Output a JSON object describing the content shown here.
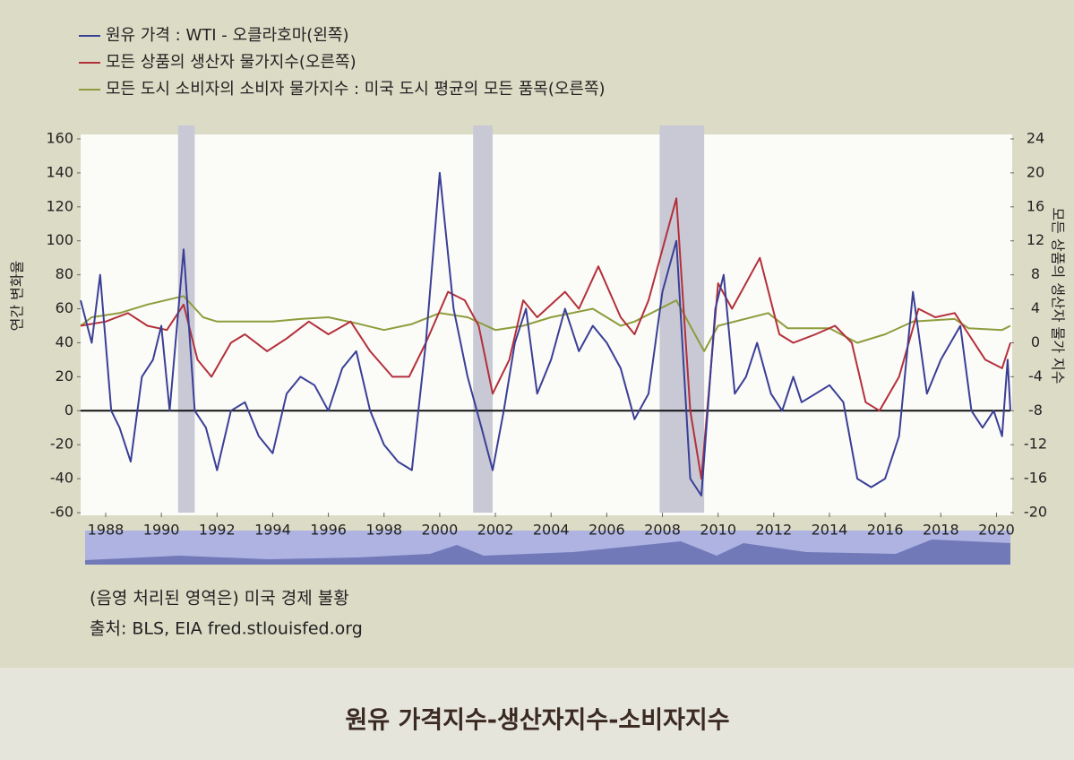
{
  "chart_data": {
    "type": "line",
    "title": "원유 가격지수-생산자지수-소비자지수",
    "ylabel": "연간 변화율",
    "y2label": "모든 상품의 생산자 물가 지수",
    "note": "(음영 처리된 영역은) 미국 경제 불황",
    "source": "출처: BLS, EIA fred.stlouisfed.org",
    "xlim": [
      1987.1,
      2020.5
    ],
    "xticks": [
      1988,
      1990,
      1992,
      1994,
      1996,
      1998,
      2000,
      2002,
      2004,
      2006,
      2008,
      2010,
      2012,
      2014,
      2016,
      2018,
      2020
    ],
    "ylim": [
      -60,
      160
    ],
    "yticks": [
      -60,
      -40,
      -20,
      0,
      20,
      40,
      60,
      80,
      100,
      120,
      140,
      160
    ],
    "y2lim": [
      -20,
      24
    ],
    "y2ticks": [
      -20,
      -16,
      -12,
      -8,
      -4,
      0,
      4,
      8,
      12,
      16,
      20,
      24
    ],
    "grid": false,
    "legend": "top-left",
    "recession_color": "#c9c9d6",
    "recessions": [
      [
        1990.6,
        1991.2
      ],
      [
        2001.2,
        2001.9
      ],
      [
        2007.9,
        2009.5
      ]
    ],
    "series": [
      {
        "name": "원유 가격 : WTI - 오클라호마(왼쪽)",
        "color": "#3a3f96",
        "axis": "y",
        "x": [
          1987.1,
          1987.5,
          1987.8,
          1988.2,
          1988.5,
          1988.9,
          1989.3,
          1989.7,
          1990.0,
          1990.3,
          1990.8,
          1991.2,
          1991.6,
          1992.0,
          1992.5,
          1993.0,
          1993.5,
          1994.0,
          1994.5,
          1995.0,
          1995.5,
          1996.0,
          1996.5,
          1997.0,
          1997.5,
          1998.0,
          1998.5,
          1999.0,
          1999.5,
          2000.0,
          2000.5,
          2001.0,
          2001.5,
          2001.9,
          2002.3,
          2002.7,
          2003.1,
          2003.5,
          2004.0,
          2004.5,
          2005.0,
          2005.5,
          2006.0,
          2006.5,
          2007.0,
          2007.5,
          2008.0,
          2008.5,
          2009.0,
          2009.4,
          2009.9,
          2010.2,
          2010.6,
          2011.0,
          2011.4,
          2011.9,
          2012.3,
          2012.7,
          2013.0,
          2013.5,
          2014.0,
          2014.5,
          2015.0,
          2015.5,
          2016.0,
          2016.5,
          2017.0,
          2017.5,
          2018.0,
          2018.7,
          2019.1,
          2019.5,
          2019.9,
          2020.2,
          2020.4,
          2020.5
        ],
        "values": [
          65,
          40,
          80,
          0,
          -10,
          -30,
          20,
          30,
          50,
          0,
          95,
          0,
          -10,
          -35,
          0,
          5,
          -15,
          -25,
          10,
          20,
          15,
          0,
          25,
          35,
          0,
          -20,
          -30,
          -35,
          40,
          140,
          60,
          20,
          -10,
          -35,
          0,
          40,
          60,
          10,
          30,
          60,
          35,
          50,
          40,
          25,
          -5,
          10,
          70,
          100,
          -40,
          -50,
          60,
          80,
          10,
          20,
          40,
          10,
          0,
          20,
          5,
          10,
          15,
          5,
          -40,
          -45,
          -40,
          -15,
          70,
          10,
          30,
          50,
          0,
          -10,
          0,
          -15,
          30,
          0
        ]
      },
      {
        "name": "모든 상품의 생산자 물가지수(오른쪽)",
        "color": "#b3303a",
        "axis": "y2",
        "x": [
          1987.1,
          1988.0,
          1988.8,
          1989.5,
          1990.2,
          1990.8,
          1991.3,
          1991.8,
          1992.5,
          1993.0,
          1993.8,
          1994.5,
          1995.3,
          1996.0,
          1996.8,
          1997.5,
          1998.3,
          1998.9,
          1999.5,
          2000.3,
          2000.9,
          2001.4,
          2001.9,
          2002.5,
          2003.0,
          2003.5,
          2004.5,
          2005.0,
          2005.7,
          2006.5,
          2007.0,
          2007.5,
          2008.5,
          2009.0,
          2009.4,
          2010.0,
          2010.5,
          2011.5,
          2012.2,
          2012.7,
          2013.5,
          2014.2,
          2014.8,
          2015.3,
          2015.8,
          2016.5,
          2017.2,
          2017.8,
          2018.5,
          2019.0,
          2019.6,
          2020.2,
          2020.5
        ],
        "values": [
          2,
          2.5,
          3.5,
          2,
          1.5,
          4.5,
          -2,
          -4,
          0,
          1,
          -1,
          0.5,
          2.5,
          1,
          2.5,
          -1,
          -4,
          -4,
          0,
          6,
          5,
          2,
          -6,
          -2,
          5,
          3,
          6,
          4,
          9,
          3,
          1,
          5,
          17,
          -8,
          -16,
          7,
          4,
          10,
          1,
          0,
          1,
          2,
          0,
          -7,
          -8,
          -4,
          4,
          3,
          3.5,
          1,
          -2,
          -3,
          0
        ]
      },
      {
        "name": "모든 도시 소비자의 소비자 물가지수 : 미국 도시 평균의 모든 품목(오른쪽)",
        "color": "#8f9c3c",
        "axis": "y2",
        "x": [
          1987.1,
          1987.5,
          1988.5,
          1989.5,
          1990.8,
          1991.5,
          1992.0,
          1993.0,
          1994.0,
          1995.0,
          1996.0,
          1997.0,
          1998.0,
          1999.0,
          2000.0,
          2001.0,
          2002.0,
          2003.0,
          2004.0,
          2005.5,
          2006.5,
          2007.0,
          2008.5,
          2009.5,
          2010.0,
          2011.8,
          2012.5,
          2014.0,
          2015.0,
          2016.0,
          2017.0,
          2018.5,
          2019.0,
          2020.2,
          2020.5
        ],
        "values": [
          2,
          3,
          3.5,
          4.5,
          5.5,
          3,
          2.5,
          2.5,
          2.5,
          2.8,
          3,
          2.3,
          1.5,
          2.2,
          3.5,
          3,
          1.5,
          2,
          3,
          4,
          2,
          2.5,
          5,
          -1,
          2,
          3.5,
          1.7,
          1.7,
          0,
          1,
          2.5,
          2.8,
          1.7,
          1.5,
          2
        ]
      }
    ]
  }
}
